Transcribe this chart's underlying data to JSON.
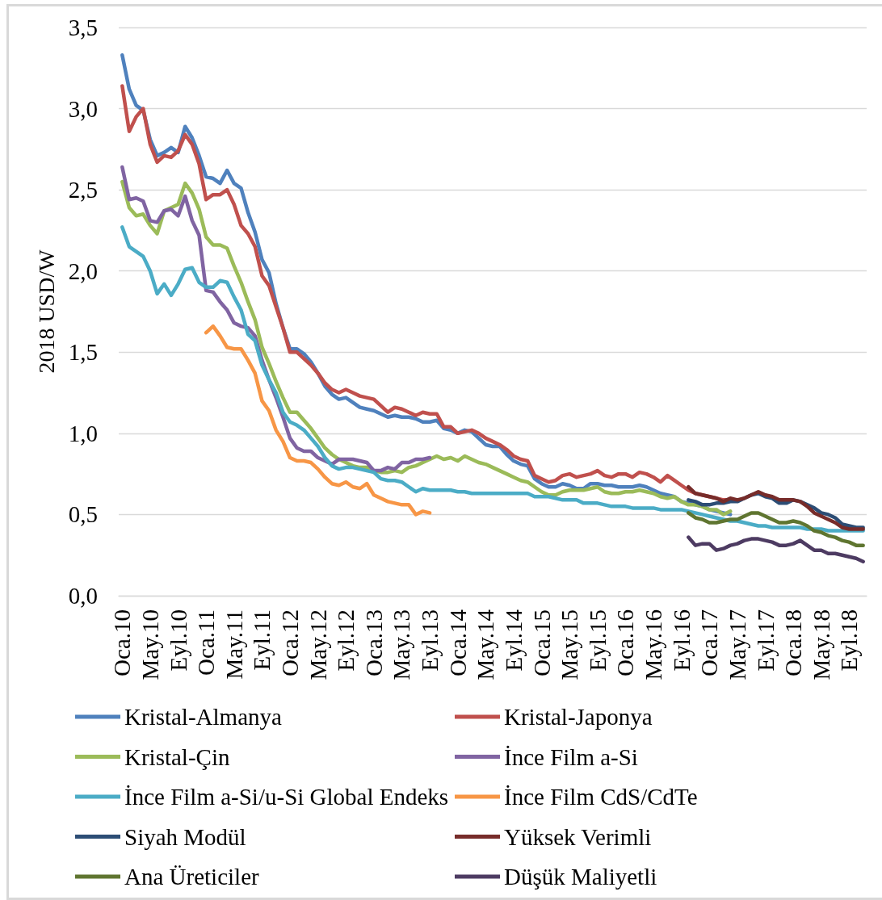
{
  "chart_data": {
    "type": "line",
    "ylabel": "2018 USD/W",
    "categories": [
      "Oca.10",
      null,
      null,
      null,
      "May.10",
      null,
      null,
      null,
      "Eyl.10",
      null,
      null,
      null,
      "Oca.11",
      null,
      null,
      null,
      "May.11",
      null,
      null,
      null,
      "Eyl.11",
      null,
      null,
      null,
      "Oca.12",
      null,
      null,
      null,
      "May.12",
      null,
      null,
      null,
      "Eyl.12",
      null,
      null,
      null,
      "Oca.13",
      null,
      null,
      null,
      "May.13",
      null,
      null,
      null,
      "Eyl.13",
      null,
      null,
      null,
      "Oca.14",
      null,
      null,
      null,
      "May.14",
      null,
      null,
      null,
      "Eyl.14",
      null,
      null,
      null,
      "Oca.15",
      null,
      null,
      null,
      "May.15",
      null,
      null,
      null,
      "Eyl.15",
      null,
      null,
      null,
      "Oca.16",
      null,
      null,
      null,
      "May.16",
      null,
      null,
      null,
      "Eyl.16",
      null,
      null,
      null,
      "Oca.17",
      null,
      null,
      null,
      "May.17",
      null,
      null,
      null,
      "Eyl.17",
      null,
      null,
      null,
      "Oca.18",
      null,
      null,
      null,
      "May.18",
      null,
      null,
      null,
      "Eyl.18",
      null,
      null
    ],
    "ylim": [
      0,
      3.5
    ],
    "yticks": [
      {
        "value": 0,
        "label": "0,0"
      },
      {
        "value": 0.5,
        "label": "0,5"
      },
      {
        "value": 1,
        "label": "1,0"
      },
      {
        "value": 1.5,
        "label": "1,5"
      },
      {
        "value": 2,
        "label": "2,0"
      },
      {
        "value": 2.5,
        "label": "2,5"
      },
      {
        "value": 3,
        "label": "3,0"
      },
      {
        "value": 3.5,
        "label": "3,5"
      }
    ],
    "grid": "y",
    "legend": "bottom",
    "marker": "none",
    "line_style": "solid",
    "series": [
      {
        "name": "Kristal-Almanya",
        "color": "#4f81bd",
        "values": [
          3.33,
          3.12,
          3.02,
          2.99,
          2.81,
          2.71,
          2.73,
          2.76,
          2.73,
          2.89,
          2.82,
          2.71,
          2.58,
          2.57,
          2.54,
          2.62,
          2.54,
          2.51,
          2.36,
          2.24,
          2.07,
          1.99,
          1.8,
          1.65,
          1.52,
          1.52,
          1.49,
          1.44,
          1.37,
          1.29,
          1.24,
          1.21,
          1.22,
          1.19,
          1.16,
          1.15,
          1.14,
          1.12,
          1.1,
          1.11,
          1.1,
          1.1,
          1.09,
          1.07,
          1.07,
          1.08,
          1.03,
          1.02,
          1.0,
          1.02,
          1.01,
          0.97,
          0.93,
          0.92,
          0.92,
          0.87,
          0.83,
          0.81,
          0.8,
          0.72,
          0.69,
          0.67,
          0.67,
          0.69,
          0.68,
          0.66,
          0.66,
          0.69,
          0.69,
          0.68,
          0.68,
          0.67,
          0.67,
          0.67,
          0.68,
          0.67,
          0.65,
          0.63,
          0.62,
          0.61,
          0.58,
          0.57,
          0.56,
          0.55,
          0.53,
          0.52,
          0.51,
          0.5,
          null,
          null,
          null,
          null,
          null,
          null,
          null,
          null,
          null,
          null,
          null,
          null,
          null,
          null,
          null,
          null,
          null,
          null,
          null
        ]
      },
      {
        "name": "Kristal-Japonya",
        "color": "#c0504d",
        "values": [
          3.14,
          2.86,
          2.95,
          3.0,
          2.78,
          2.67,
          2.71,
          2.7,
          2.74,
          2.84,
          2.78,
          2.66,
          2.44,
          2.47,
          2.47,
          2.5,
          2.41,
          2.28,
          2.23,
          2.15,
          1.97,
          1.91,
          1.78,
          1.65,
          1.5,
          1.5,
          1.46,
          1.42,
          1.37,
          1.31,
          1.27,
          1.25,
          1.27,
          1.25,
          1.23,
          1.22,
          1.21,
          1.17,
          1.13,
          1.16,
          1.15,
          1.13,
          1.11,
          1.13,
          1.12,
          1.12,
          1.04,
          1.04,
          1.0,
          1.01,
          1.02,
          1.0,
          0.97,
          0.95,
          0.93,
          0.9,
          0.86,
          0.84,
          0.83,
          0.74,
          0.72,
          0.7,
          0.71,
          0.74,
          0.75,
          0.73,
          0.74,
          0.75,
          0.77,
          0.74,
          0.73,
          0.75,
          0.75,
          0.73,
          0.76,
          0.75,
          0.73,
          0.7,
          0.74,
          0.71,
          0.68,
          0.65,
          0.63,
          0.62,
          0.61,
          0.6,
          0.59,
          0.59,
          null,
          null,
          null,
          null,
          null,
          null,
          null,
          null,
          null,
          null,
          null,
          null,
          null,
          null,
          null,
          null,
          null,
          null,
          null
        ]
      },
      {
        "name": "Kristal-Çin",
        "color": "#9bbb59",
        "values": [
          2.55,
          2.39,
          2.34,
          2.35,
          2.28,
          2.23,
          2.37,
          2.39,
          2.41,
          2.54,
          2.48,
          2.38,
          2.21,
          2.16,
          2.16,
          2.14,
          2.03,
          1.93,
          1.81,
          1.7,
          1.53,
          1.43,
          1.32,
          1.22,
          1.13,
          1.13,
          1.08,
          1.03,
          0.97,
          0.91,
          0.87,
          0.84,
          0.82,
          0.8,
          0.79,
          0.79,
          0.77,
          0.76,
          0.76,
          0.77,
          0.76,
          0.79,
          0.8,
          0.82,
          0.84,
          0.86,
          0.84,
          0.85,
          0.83,
          0.86,
          0.84,
          0.82,
          0.81,
          0.79,
          0.77,
          0.75,
          0.73,
          0.71,
          0.7,
          0.67,
          0.64,
          0.62,
          0.62,
          0.64,
          0.65,
          0.65,
          0.65,
          0.66,
          0.67,
          0.64,
          0.63,
          0.63,
          0.64,
          0.64,
          0.65,
          0.64,
          0.63,
          0.61,
          0.6,
          0.61,
          0.58,
          0.56,
          0.56,
          0.55,
          0.53,
          0.53,
          0.5,
          0.52,
          null,
          null,
          null,
          null,
          null,
          null,
          null,
          null,
          null,
          null,
          null,
          null,
          null,
          null,
          null,
          null,
          null,
          null,
          null
        ]
      },
      {
        "name": "İnce Film a-Si",
        "color": "#8064a2",
        "values": [
          2.64,
          2.44,
          2.45,
          2.43,
          2.31,
          2.3,
          2.37,
          2.38,
          2.34,
          2.46,
          2.31,
          2.22,
          1.88,
          1.87,
          1.81,
          1.76,
          1.68,
          1.66,
          1.65,
          1.6,
          1.45,
          1.33,
          1.22,
          1.1,
          0.97,
          0.91,
          0.89,
          0.89,
          0.85,
          0.83,
          0.81,
          0.84,
          0.84,
          0.84,
          0.83,
          0.82,
          0.77,
          0.77,
          0.79,
          0.78,
          0.82,
          0.82,
          0.84,
          0.84,
          0.85,
          null,
          null,
          null,
          null,
          null,
          null,
          null,
          null,
          null,
          null,
          null,
          null,
          null,
          null,
          null,
          null,
          null,
          null,
          null,
          null,
          null,
          null,
          null,
          null,
          null,
          null,
          null,
          null,
          null,
          null,
          null,
          null,
          null,
          null,
          null,
          null,
          null,
          null,
          null,
          null,
          null,
          null,
          null,
          null,
          null,
          null,
          null,
          null,
          null,
          null,
          null,
          null,
          null,
          null,
          null,
          null,
          null,
          null,
          null,
          null,
          null,
          null
        ]
      },
      {
        "name": "İnce Film a-Si/u-Si Global Endeks",
        "color": "#4bacc6",
        "values": [
          2.27,
          2.15,
          2.12,
          2.09,
          2.0,
          1.86,
          1.92,
          1.85,
          1.92,
          2.01,
          2.02,
          1.93,
          1.9,
          1.9,
          1.94,
          1.93,
          1.84,
          1.76,
          1.61,
          1.57,
          1.42,
          1.33,
          1.25,
          1.13,
          1.07,
          1.05,
          1.02,
          0.97,
          0.92,
          0.85,
          0.8,
          0.78,
          0.79,
          0.79,
          0.78,
          0.77,
          0.76,
          0.72,
          0.71,
          0.71,
          0.7,
          0.67,
          0.64,
          0.66,
          0.65,
          0.65,
          0.65,
          0.65,
          0.64,
          0.64,
          0.63,
          0.63,
          0.63,
          0.63,
          0.63,
          0.63,
          0.63,
          0.63,
          0.63,
          0.61,
          0.61,
          0.61,
          0.6,
          0.59,
          0.59,
          0.59,
          0.57,
          0.57,
          0.57,
          0.56,
          0.55,
          0.55,
          0.55,
          0.54,
          0.54,
          0.54,
          0.54,
          0.53,
          0.53,
          0.53,
          0.53,
          0.52,
          0.51,
          0.5,
          0.49,
          0.48,
          0.47,
          0.46,
          0.46,
          0.45,
          0.44,
          0.43,
          0.43,
          0.42,
          0.42,
          0.42,
          0.42,
          0.42,
          0.41,
          0.41,
          0.41,
          0.4,
          0.4,
          0.4,
          0.4,
          0.4,
          0.4
        ]
      },
      {
        "name": "İnce Film CdS/CdTe",
        "color": "#f79646",
        "values": [
          null,
          null,
          null,
          null,
          null,
          null,
          null,
          null,
          null,
          null,
          null,
          null,
          1.62,
          1.66,
          1.6,
          1.53,
          1.52,
          1.52,
          1.45,
          1.37,
          1.2,
          1.14,
          1.02,
          0.95,
          0.85,
          0.83,
          0.83,
          0.82,
          0.78,
          0.73,
          0.69,
          0.68,
          0.7,
          0.67,
          0.66,
          0.69,
          0.62,
          0.6,
          0.58,
          0.57,
          0.56,
          0.56,
          0.5,
          0.52,
          0.51,
          null,
          null,
          null,
          null,
          null,
          null,
          null,
          null,
          null,
          null,
          null,
          null,
          null,
          null,
          null,
          null,
          null,
          null,
          null,
          null,
          null,
          null,
          null,
          null,
          null,
          null,
          null,
          null,
          null,
          null,
          null,
          null,
          null,
          null,
          null,
          null,
          null,
          null,
          null,
          null,
          null,
          null,
          null,
          null,
          null,
          null,
          null,
          null,
          null,
          null,
          null,
          null,
          null,
          null,
          null,
          null,
          null,
          null,
          null,
          null,
          null,
          null
        ]
      },
      {
        "name": "Siyah Modül",
        "color": "#2c4d75",
        "values": [
          null,
          null,
          null,
          null,
          null,
          null,
          null,
          null,
          null,
          null,
          null,
          null,
          null,
          null,
          null,
          null,
          null,
          null,
          null,
          null,
          null,
          null,
          null,
          null,
          null,
          null,
          null,
          null,
          null,
          null,
          null,
          null,
          null,
          null,
          null,
          null,
          null,
          null,
          null,
          null,
          null,
          null,
          null,
          null,
          null,
          null,
          null,
          null,
          null,
          null,
          null,
          null,
          null,
          null,
          null,
          null,
          null,
          null,
          null,
          null,
          null,
          null,
          null,
          null,
          null,
          null,
          null,
          null,
          null,
          null,
          null,
          null,
          null,
          null,
          null,
          null,
          null,
          null,
          null,
          null,
          null,
          0.59,
          0.58,
          0.56,
          0.56,
          0.57,
          0.57,
          0.58,
          0.58,
          0.6,
          0.62,
          0.63,
          0.61,
          0.6,
          0.57,
          0.57,
          0.59,
          0.58,
          0.56,
          0.54,
          0.51,
          0.5,
          0.48,
          0.44,
          0.43,
          0.42,
          0.42
        ]
      },
      {
        "name": "Yüksek Verimli",
        "color": "#772c2a",
        "values": [
          null,
          null,
          null,
          null,
          null,
          null,
          null,
          null,
          null,
          null,
          null,
          null,
          null,
          null,
          null,
          null,
          null,
          null,
          null,
          null,
          null,
          null,
          null,
          null,
          null,
          null,
          null,
          null,
          null,
          null,
          null,
          null,
          null,
          null,
          null,
          null,
          null,
          null,
          null,
          null,
          null,
          null,
          null,
          null,
          null,
          null,
          null,
          null,
          null,
          null,
          null,
          null,
          null,
          null,
          null,
          null,
          null,
          null,
          null,
          null,
          null,
          null,
          null,
          null,
          null,
          null,
          null,
          null,
          null,
          null,
          null,
          null,
          null,
          null,
          null,
          null,
          null,
          null,
          null,
          null,
          null,
          0.67,
          0.63,
          0.62,
          0.61,
          0.6,
          0.58,
          0.6,
          0.59,
          0.6,
          0.62,
          0.64,
          0.62,
          0.61,
          0.59,
          0.59,
          0.59,
          0.58,
          0.55,
          0.51,
          0.49,
          0.47,
          0.45,
          0.42,
          0.41,
          0.41,
          0.41
        ]
      },
      {
        "name": "Ana Üreticiler",
        "color": "#5f7530",
        "values": [
          null,
          null,
          null,
          null,
          null,
          null,
          null,
          null,
          null,
          null,
          null,
          null,
          null,
          null,
          null,
          null,
          null,
          null,
          null,
          null,
          null,
          null,
          null,
          null,
          null,
          null,
          null,
          null,
          null,
          null,
          null,
          null,
          null,
          null,
          null,
          null,
          null,
          null,
          null,
          null,
          null,
          null,
          null,
          null,
          null,
          null,
          null,
          null,
          null,
          null,
          null,
          null,
          null,
          null,
          null,
          null,
          null,
          null,
          null,
          null,
          null,
          null,
          null,
          null,
          null,
          null,
          null,
          null,
          null,
          null,
          null,
          null,
          null,
          null,
          null,
          null,
          null,
          null,
          null,
          null,
          null,
          0.51,
          0.48,
          0.47,
          0.45,
          0.45,
          0.46,
          0.47,
          0.47,
          0.49,
          0.51,
          0.51,
          0.49,
          0.47,
          0.45,
          0.45,
          0.46,
          0.45,
          0.43,
          0.4,
          0.39,
          0.37,
          0.36,
          0.34,
          0.33,
          0.31,
          0.31
        ]
      },
      {
        "name": "Düşük Maliyetli",
        "color": "#4d3b62",
        "values": [
          null,
          null,
          null,
          null,
          null,
          null,
          null,
          null,
          null,
          null,
          null,
          null,
          null,
          null,
          null,
          null,
          null,
          null,
          null,
          null,
          null,
          null,
          null,
          null,
          null,
          null,
          null,
          null,
          null,
          null,
          null,
          null,
          null,
          null,
          null,
          null,
          null,
          null,
          null,
          null,
          null,
          null,
          null,
          null,
          null,
          null,
          null,
          null,
          null,
          null,
          null,
          null,
          null,
          null,
          null,
          null,
          null,
          null,
          null,
          null,
          null,
          null,
          null,
          null,
          null,
          null,
          null,
          null,
          null,
          null,
          null,
          null,
          null,
          null,
          null,
          null,
          null,
          null,
          null,
          null,
          null,
          0.36,
          0.31,
          0.32,
          0.32,
          0.28,
          0.29,
          0.31,
          0.32,
          0.34,
          0.35,
          0.35,
          0.34,
          0.33,
          0.31,
          0.31,
          0.32,
          0.34,
          0.31,
          0.28,
          0.28,
          0.26,
          0.26,
          0.25,
          0.24,
          0.23,
          0.21
        ]
      }
    ]
  }
}
